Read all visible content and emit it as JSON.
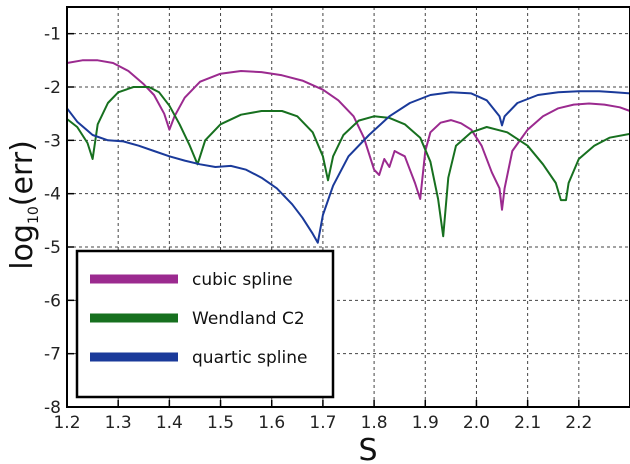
{
  "chart_data": {
    "type": "line",
    "xlabel": "S",
    "ylabel_main": "log",
    "ylabel_sub": "10",
    "ylabel_tail": "(err)",
    "xlim": [
      1.2,
      2.3
    ],
    "ylim": [
      -8,
      -0.5
    ],
    "x_ticks": [
      1.2,
      1.3,
      1.4,
      1.5,
      1.6,
      1.7,
      1.8,
      1.9,
      2.0,
      2.1,
      2.2
    ],
    "x_tick_labels": [
      "1.2",
      "1.3",
      "1.4",
      "1.5",
      "1.6",
      "1.7",
      "1.8",
      "1.9",
      "2.0",
      "2.1",
      "2.2"
    ],
    "y_ticks": [
      -8,
      -7,
      -6,
      -5,
      -4,
      -3,
      -2,
      -1
    ],
    "y_tick_labels": [
      "-8",
      "-7",
      "-6",
      "-5",
      "-4",
      "-3",
      "-2",
      "-1"
    ],
    "grid": true,
    "legend_position": "bottom-left",
    "series": [
      {
        "name": "cubic spline",
        "color": "#9b2a8f",
        "x": [
          1.2,
          1.23,
          1.26,
          1.29,
          1.32,
          1.35,
          1.37,
          1.39,
          1.4,
          1.41,
          1.43,
          1.46,
          1.5,
          1.54,
          1.58,
          1.62,
          1.66,
          1.7,
          1.73,
          1.76,
          1.78,
          1.8,
          1.81,
          1.82,
          1.83,
          1.84,
          1.85,
          1.86,
          1.87,
          1.88,
          1.89,
          1.9,
          1.91,
          1.93,
          1.95,
          1.97,
          1.99,
          2.01,
          2.03,
          2.045,
          2.05,
          2.055,
          2.07,
          2.1,
          2.13,
          2.16,
          2.19,
          2.22,
          2.25,
          2.28,
          2.3
        ],
        "values": [
          -1.55,
          -1.5,
          -1.5,
          -1.55,
          -1.7,
          -1.95,
          -2.15,
          -2.5,
          -2.8,
          -2.55,
          -2.2,
          -1.9,
          -1.75,
          -1.7,
          -1.72,
          -1.78,
          -1.88,
          -2.05,
          -2.25,
          -2.55,
          -2.95,
          -3.55,
          -3.65,
          -3.35,
          -3.5,
          -3.2,
          -3.25,
          -3.3,
          -3.55,
          -3.8,
          -4.1,
          -3.2,
          -2.85,
          -2.67,
          -2.62,
          -2.68,
          -2.8,
          -3.1,
          -3.6,
          -3.9,
          -4.3,
          -3.9,
          -3.2,
          -2.8,
          -2.55,
          -2.4,
          -2.33,
          -2.31,
          -2.33,
          -2.38,
          -2.45
        ]
      },
      {
        "name": "Wendland C2",
        "color": "#17701f",
        "x": [
          1.2,
          1.22,
          1.24,
          1.25,
          1.26,
          1.28,
          1.3,
          1.33,
          1.36,
          1.38,
          1.4,
          1.42,
          1.44,
          1.455,
          1.46,
          1.47,
          1.5,
          1.54,
          1.58,
          1.62,
          1.65,
          1.68,
          1.7,
          1.71,
          1.72,
          1.74,
          1.77,
          1.8,
          1.83,
          1.86,
          1.89,
          1.91,
          1.925,
          1.935,
          1.945,
          1.96,
          1.99,
          2.02,
          2.06,
          2.1,
          2.13,
          2.155,
          2.165,
          2.175,
          2.18,
          2.2,
          2.23,
          2.26,
          2.3
        ],
        "values": [
          -2.6,
          -2.75,
          -3.05,
          -3.35,
          -2.7,
          -2.3,
          -2.1,
          -2.0,
          -2.0,
          -2.1,
          -2.35,
          -2.7,
          -3.1,
          -3.45,
          -3.3,
          -3.0,
          -2.7,
          -2.52,
          -2.45,
          -2.45,
          -2.55,
          -2.85,
          -3.3,
          -3.75,
          -3.3,
          -2.9,
          -2.63,
          -2.55,
          -2.58,
          -2.7,
          -2.95,
          -3.4,
          -4.1,
          -4.8,
          -3.7,
          -3.1,
          -2.85,
          -2.75,
          -2.85,
          -3.1,
          -3.45,
          -3.8,
          -4.12,
          -4.12,
          -3.8,
          -3.35,
          -3.1,
          -2.95,
          -2.88
        ]
      },
      {
        "name": "quartic spline",
        "color": "#1a3a9a",
        "x": [
          1.2,
          1.22,
          1.25,
          1.28,
          1.31,
          1.34,
          1.37,
          1.4,
          1.43,
          1.46,
          1.49,
          1.52,
          1.55,
          1.58,
          1.61,
          1.64,
          1.66,
          1.68,
          1.69,
          1.7,
          1.72,
          1.75,
          1.79,
          1.83,
          1.87,
          1.91,
          1.95,
          1.99,
          2.02,
          2.045,
          2.05,
          2.055,
          2.08,
          2.12,
          2.16,
          2.2,
          2.24,
          2.27,
          2.3
        ],
        "values": [
          -2.4,
          -2.65,
          -2.9,
          -3.0,
          -3.02,
          -3.1,
          -3.2,
          -3.3,
          -3.38,
          -3.45,
          -3.5,
          -3.48,
          -3.55,
          -3.7,
          -3.9,
          -4.2,
          -4.45,
          -4.75,
          -4.92,
          -4.4,
          -3.85,
          -3.3,
          -2.9,
          -2.55,
          -2.3,
          -2.15,
          -2.1,
          -2.12,
          -2.25,
          -2.55,
          -2.72,
          -2.55,
          -2.3,
          -2.15,
          -2.1,
          -2.08,
          -2.08,
          -2.1,
          -2.12
        ]
      }
    ]
  }
}
